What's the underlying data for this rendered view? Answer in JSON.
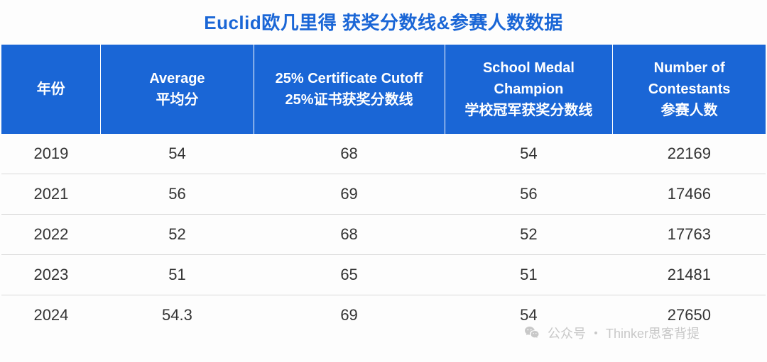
{
  "title": "Euclid欧几里得 获奖分数线&参赛人数数据",
  "table": {
    "type": "table",
    "header_bg": "#1a66d6",
    "header_text_color": "#ffffff",
    "row_border_color": "#d9d9d9",
    "body_text_color": "#333333",
    "title_color": "#1a66d6",
    "title_fontsize": 26,
    "header_fontsize": 20,
    "cell_fontsize": 22,
    "columns": [
      {
        "key": "year",
        "line1": "年份",
        "line2": "",
        "width": "13%"
      },
      {
        "key": "avg",
        "line1": "Average",
        "line2": "平均分",
        "width": "20%"
      },
      {
        "key": "cutoff",
        "line1": "25% Certificate Cutoff",
        "line2": "25%证书获奖分数线",
        "width": "25%"
      },
      {
        "key": "medal",
        "line1": "School Medal Champion",
        "line2": "学校冠军获奖分数线",
        "width": "22%"
      },
      {
        "key": "contestants",
        "line1": "Number of Contestants",
        "line2": "参赛人数",
        "width": "20%"
      }
    ],
    "rows": [
      {
        "year": "2019",
        "avg": "54",
        "cutoff": "68",
        "medal": "54",
        "contestants": "22169"
      },
      {
        "year": "2021",
        "avg": "56",
        "cutoff": "69",
        "medal": "56",
        "contestants": "17466"
      },
      {
        "year": "2022",
        "avg": "52",
        "cutoff": "68",
        "medal": "52",
        "contestants": "17763"
      },
      {
        "year": "2023",
        "avg": "51",
        "cutoff": "65",
        "medal": "51",
        "contestants": "21481"
      },
      {
        "year": "2024",
        "avg": "54.3",
        "cutoff": "69",
        "medal": "54",
        "contestants": "27650"
      }
    ]
  },
  "watermark": {
    "label": "公众号",
    "name": "Thinker思客背提",
    "icon": "wechat-icon",
    "color": "#7a7a7a",
    "opacity": 0.4
  }
}
